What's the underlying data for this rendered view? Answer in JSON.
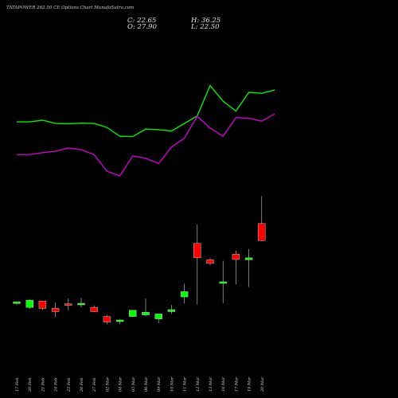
{
  "header": {
    "title": "TATAPOWER 262.50 CE Options Chart MunafaSutra.com",
    "c_label": "C: 22.65",
    "o_label": "O: 27.90",
    "h_label": "H: 36.25",
    "l_label": "L: 22.50"
  },
  "colors": {
    "background": "#000000",
    "up": "#00ff00",
    "down": "#ff0000",
    "upper_band": "#00ee00",
    "lower_band": "#cc00cc"
  },
  "chart_data": {
    "type": "candlestick",
    "grid": false,
    "categories": [
      "17 Feb",
      "20 Feb",
      "21 Feb",
      "24 Feb",
      "25 Feb",
      "26 Feb",
      "27 Feb",
      "02 Mar",
      "04 Mar",
      "05 Mar",
      "06 Mar",
      "09 Mar",
      "10 Mar",
      "11 Mar",
      "12 Mar",
      "13 Mar",
      "16 Mar",
      "17 Mar",
      "19 Mar",
      "20 Mar"
    ],
    "ylim": [
      0,
      38
    ],
    "series": [
      {
        "kind": "candles",
        "open": [
          3.5,
          2.3,
          4.2,
          2.0,
          3.3,
          3.1,
          2.3,
          -0.5,
          -2.0,
          -0.5,
          0.0,
          -1.2,
          1.0,
          5.5,
          21.8,
          16.8,
          9.7,
          18.5,
          16.8,
          27.9
        ],
        "high": [
          3.8,
          4.8,
          4.3,
          3.8,
          5.0,
          5.2,
          2.9,
          0.0,
          -1.4,
          1.5,
          5.0,
          0.0,
          3.0,
          9.5,
          27.6,
          17.3,
          16.5,
          19.6,
          20.1,
          36.25
        ],
        "low": [
          3.1,
          1.8,
          1.5,
          -0.6,
          1.4,
          2.2,
          0.8,
          -2.8,
          -2.8,
          -0.6,
          -0.5,
          -2.5,
          0.3,
          3.5,
          3.2,
          15.2,
          3.6,
          9.3,
          8.5,
          22.5
        ],
        "close": [
          4.0,
          4.5,
          2.0,
          1.0,
          3.0,
          3.5,
          1.0,
          -2.2,
          -1.6,
          1.4,
          0.8,
          0.3,
          1.6,
          7.1,
          17.4,
          15.7,
          10.0,
          16.9,
          17.4,
          22.65
        ]
      },
      {
        "kind": "line",
        "values": [
          [
            0,
            58.9
          ],
          [
            1,
            58.9
          ],
          [
            2,
            59.4
          ],
          [
            3,
            58.4
          ],
          [
            4,
            58.3
          ],
          [
            5,
            58.5
          ],
          [
            6,
            58.4
          ],
          [
            7,
            57.2
          ],
          [
            8,
            54.5
          ],
          [
            9,
            54.4
          ],
          [
            10,
            56.7
          ],
          [
            11,
            56.5
          ],
          [
            12,
            56.1
          ],
          [
            13,
            58.4
          ],
          [
            14,
            60.7
          ],
          [
            15,
            70.0
          ],
          [
            16,
            65.2
          ],
          [
            17,
            62.2
          ],
          [
            18,
            67.9
          ],
          [
            19,
            67.6
          ],
          [
            20,
            68.6
          ]
        ]
      },
      {
        "kind": "line",
        "values": [
          [
            0,
            48.9
          ],
          [
            1,
            48.9
          ],
          [
            2,
            49.5
          ],
          [
            3,
            49.9
          ],
          [
            4,
            50.9
          ],
          [
            5,
            50.4
          ],
          [
            6,
            48.9
          ],
          [
            7,
            43.8
          ],
          [
            8,
            42.4
          ],
          [
            9,
            48.5
          ],
          [
            10,
            47.8
          ],
          [
            11,
            46.2
          ],
          [
            12,
            51.2
          ],
          [
            13,
            53.9
          ],
          [
            14,
            60.6
          ],
          [
            15,
            57.0
          ],
          [
            16,
            54.5
          ],
          [
            17,
            60.2
          ],
          [
            18,
            60.0
          ],
          [
            19,
            59.1
          ],
          [
            20,
            61.3
          ]
        ]
      }
    ]
  }
}
